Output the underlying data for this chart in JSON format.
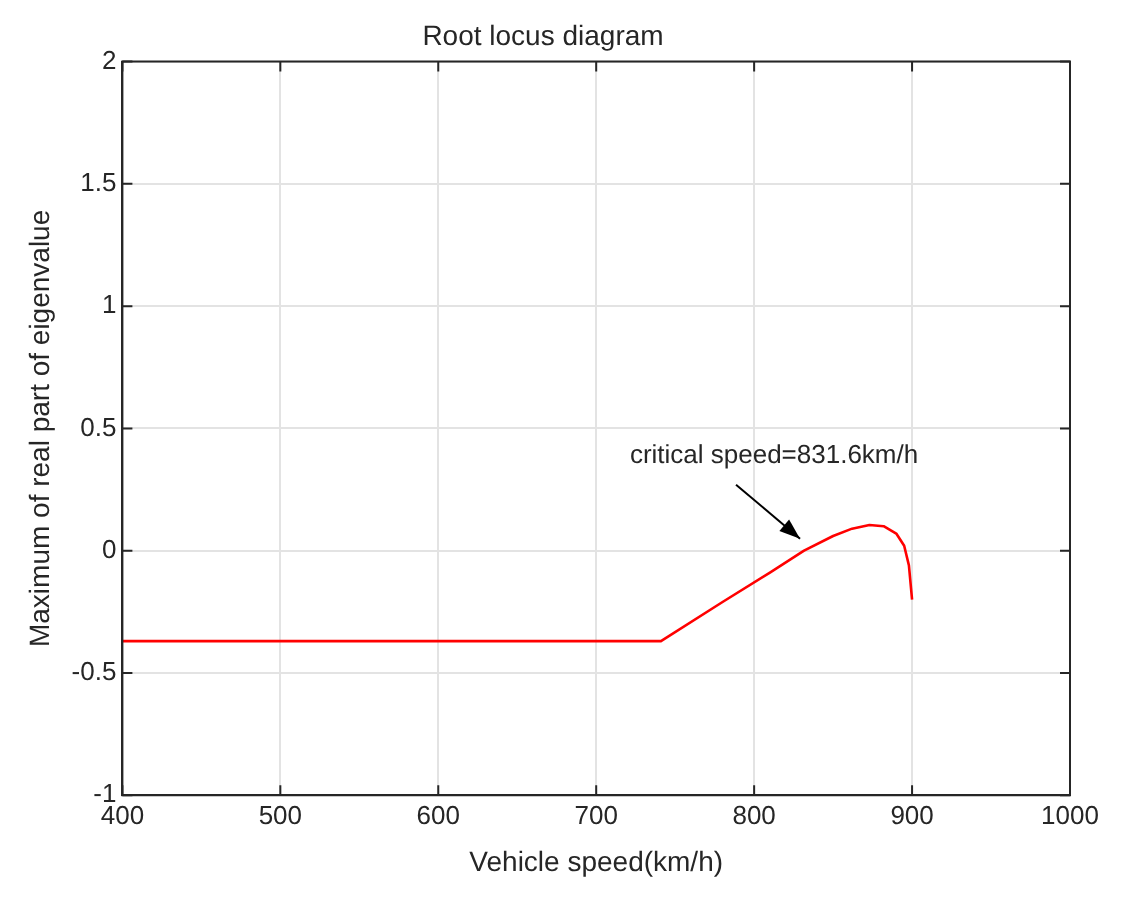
{
  "chart_data": {
    "type": "line",
    "title": "Root locus diagram",
    "xlabel": "Vehicle speed(km/h)",
    "ylabel": "Maximum of real part of eigenvalue",
    "x": [
      400,
      741,
      780,
      810,
      831.6,
      850,
      862,
      873,
      882,
      890,
      895,
      898,
      900
    ],
    "series": [
      {
        "color": "#ff0000",
        "values": [
          -0.37,
          -0.37,
          -0.21,
          -0.09,
          0,
          0.06,
          0.09,
          0.105,
          0.1,
          0.07,
          0.02,
          -0.06,
          -0.2
        ]
      }
    ],
    "xlim": [
      400,
      1000
    ],
    "xticks": [
      400,
      500,
      600,
      700,
      800,
      900,
      1000
    ],
    "ylim": [
      -1,
      2
    ],
    "yticks": [
      -1,
      -0.5,
      0,
      0.5,
      1,
      1.5,
      2
    ],
    "annotations": [
      {
        "text": "critical speed=831.6km/h",
        "x": 831.6,
        "y": 0
      }
    ],
    "grid": true,
    "legend": false,
    "marker": "none",
    "line_style": "solid"
  }
}
